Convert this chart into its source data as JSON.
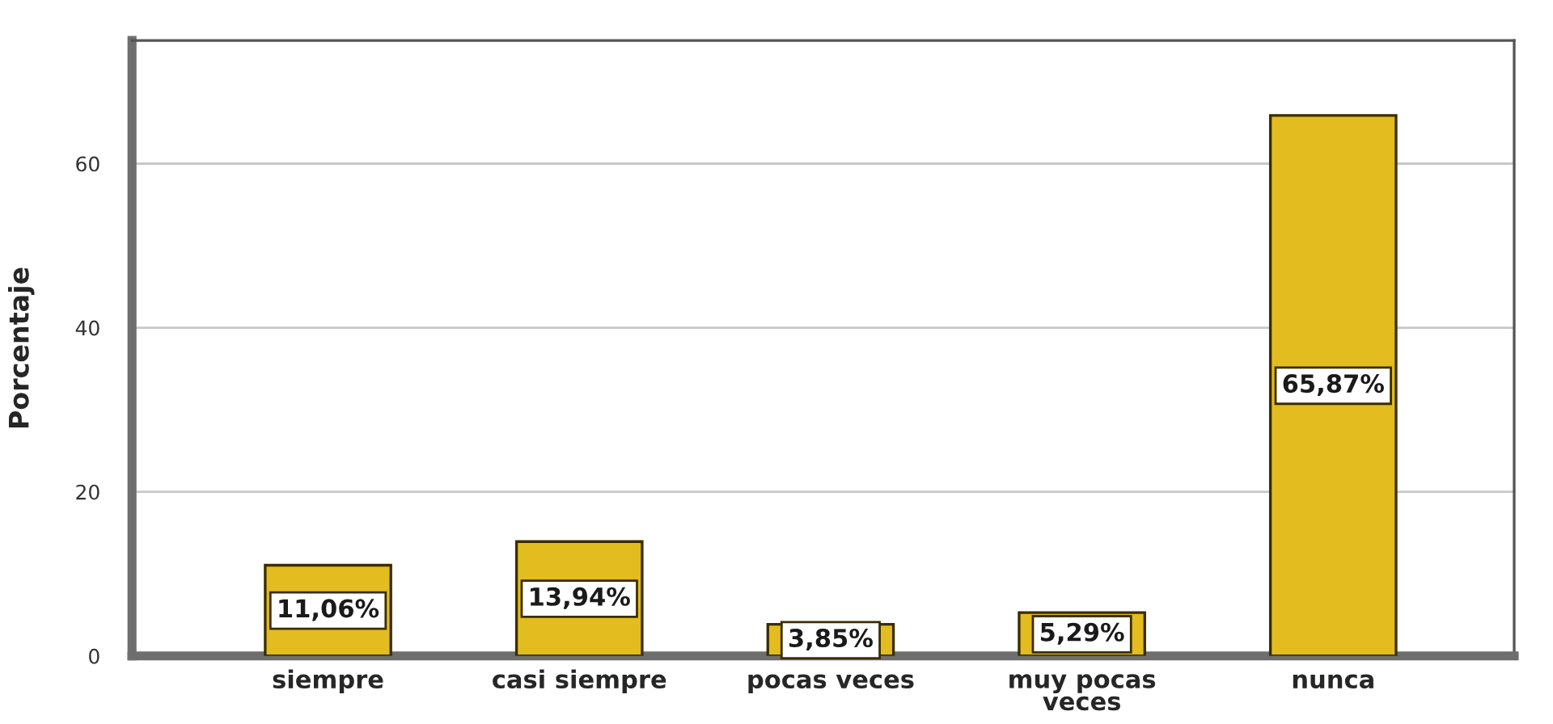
{
  "chart_data": {
    "type": "bar",
    "ylabel": "Porcentaje",
    "categories": [
      "siempre",
      "casi siempre",
      "pocas veces",
      "muy pocas\nveces",
      "nunca"
    ],
    "values": [
      11.06,
      13.94,
      3.85,
      5.29,
      65.87
    ],
    "value_labels": [
      "11,06%",
      "13,94%",
      "3,85%",
      "5,29%",
      "65,87%"
    ],
    "color": "#e3bc1f",
    "ylim": [
      0,
      75
    ],
    "yticks": [
      0,
      20,
      40,
      60
    ],
    "grid": "y"
  }
}
